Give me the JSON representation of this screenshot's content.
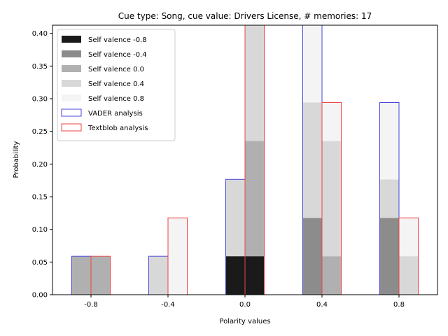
{
  "chart_data": {
    "type": "bar",
    "title": "Cue type: Song, cue value: Drivers License, # memories: 17",
    "xlabel": "Polarity values",
    "ylabel": "Probability",
    "categories": [
      "-0.8",
      "-0.4",
      "0.0",
      "0.4",
      "0.8"
    ],
    "ylim": [
      0,
      0.4125
    ],
    "y_ticks": [
      "0.00",
      "0.05",
      "0.10",
      "0.15",
      "0.20",
      "0.25",
      "0.30",
      "0.35",
      "0.40"
    ],
    "grid": false,
    "legend_position": "top-left",
    "stacked_series": [
      {
        "name": "Self valence -0.8",
        "color": "#1a1a1a"
      },
      {
        "name": "Self valence -0.4",
        "color": "#8c8c8c"
      },
      {
        "name": "Self valence 0.0",
        "color": "#b0b0b0"
      },
      {
        "name": "Self valence 0.4",
        "color": "#d8d8d8"
      },
      {
        "name": "Self valence 0.8",
        "color": "#f4f4f4"
      }
    ],
    "analysis_series": [
      {
        "name": "VADER analysis",
        "edge_color": "#4444dd",
        "totals": [
          0.0588,
          0.0588,
          0.1765,
          0.4125,
          0.2941
        ],
        "stack_values": [
          [
            0,
            0,
            0.0588,
            0,
            0
          ],
          [
            0,
            0,
            0,
            0.1176,
            0.1176
          ],
          [
            0.0588,
            0,
            0,
            0,
            0
          ],
          [
            0,
            0.0588,
            0.1176,
            0.1765,
            0.0588
          ],
          [
            0,
            0,
            0,
            0.1184,
            0.1176
          ]
        ]
      },
      {
        "name": "Textblob analysis",
        "edge_color": "#ee4444",
        "totals": [
          0.0588,
          0.1176,
          0.4125,
          0.2941,
          0.1176
        ],
        "stack_values": [
          [
            0,
            0,
            0.0588,
            0,
            0
          ],
          [
            0,
            0,
            0,
            0,
            0
          ],
          [
            0.0588,
            0,
            0.1765,
            0.0588,
            0
          ],
          [
            0,
            0,
            0.1772,
            0.1765,
            0.0588
          ],
          [
            0,
            0.1176,
            0,
            0.0588,
            0.0588
          ]
        ]
      }
    ]
  }
}
